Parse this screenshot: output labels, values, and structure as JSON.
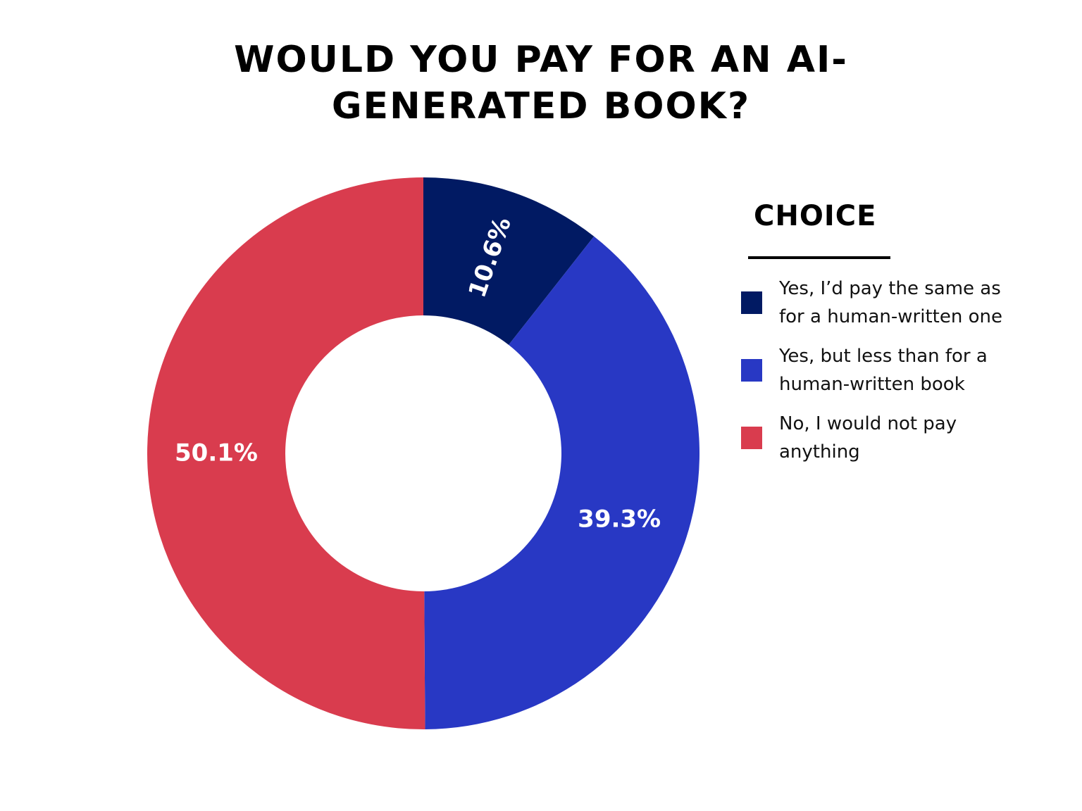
{
  "chart_data": {
    "type": "pie",
    "title": "WOULD YOU PAY FOR AN AI-GENERATED BOOK?",
    "legend_title": "CHOICE",
    "categories": [
      "Yes, I’d pay the same as for a human-written one",
      "Yes, but less than for a human-written book",
      "No, I would not pay anything"
    ],
    "values": [
      10.6,
      39.3,
      50.1
    ],
    "value_labels": [
      "10.6%",
      "39.3%",
      "50.1%"
    ],
    "colors": [
      "#011a63",
      "#2838c4",
      "#d93c4e"
    ],
    "legend_position": "right"
  }
}
